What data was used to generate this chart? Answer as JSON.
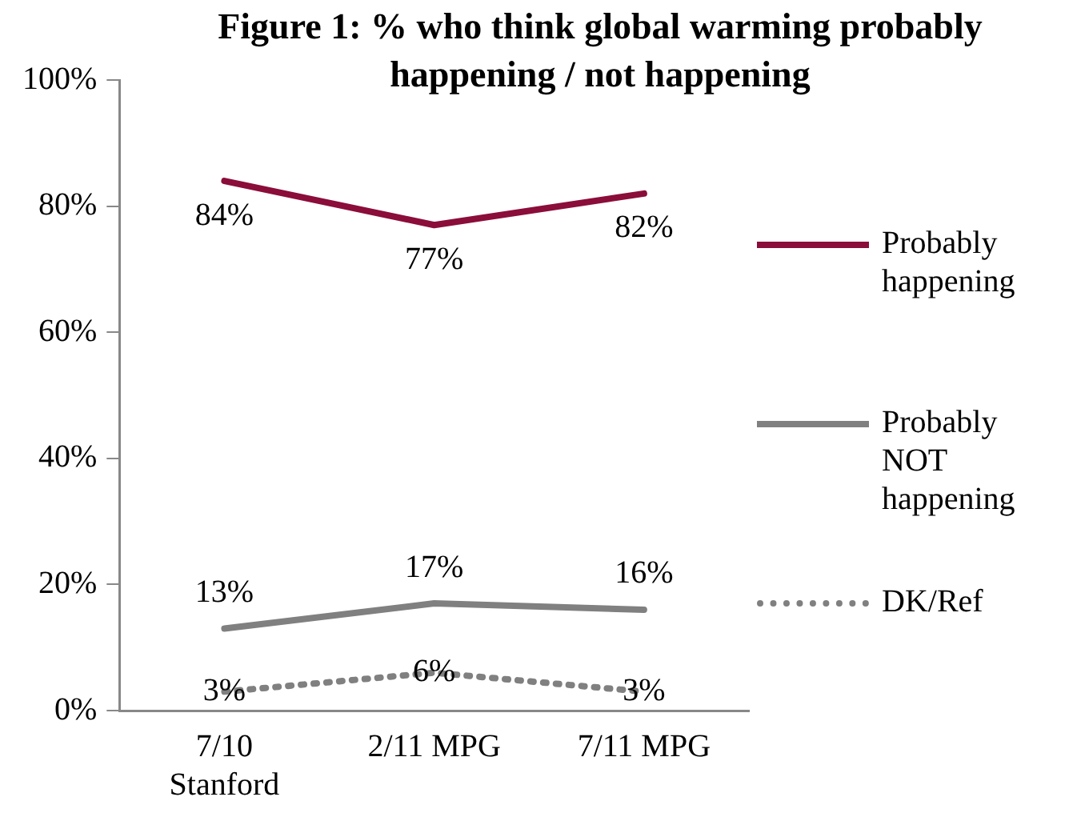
{
  "chart_data": {
    "type": "line",
    "title": "Figure 1: % who think global warming probably happening / not happening",
    "categories": [
      "7/10 Stanford",
      "2/11 MPG",
      "7/11 MPG"
    ],
    "series": [
      {
        "name": "Probably happening",
        "color": "#8b0d3a",
        "values": [
          84,
          77,
          82
        ],
        "value_labels": [
          "84%",
          "77%",
          "82%"
        ]
      },
      {
        "name": "Probably NOT happening",
        "color": "#808080",
        "values": [
          13,
          17,
          16
        ],
        "value_labels": [
          "13%",
          "17%",
          "16%"
        ]
      },
      {
        "name": "DK/Ref",
        "color": "#808080",
        "values": [
          3,
          6,
          3
        ],
        "value_labels": [
          "3%",
          "6%",
          "3%"
        ],
        "line_style": "dotted"
      }
    ],
    "ylim": [
      0,
      100
    ],
    "yticks": [
      {
        "value": 0,
        "label": "0%"
      },
      {
        "value": 20,
        "label": "20%"
      },
      {
        "value": 40,
        "label": "40%"
      },
      {
        "value": 60,
        "label": "60%"
      },
      {
        "value": 80,
        "label": "80%"
      },
      {
        "value": 100,
        "label": "100%"
      }
    ],
    "grid": false,
    "legend": "right",
    "marker": "none"
  }
}
